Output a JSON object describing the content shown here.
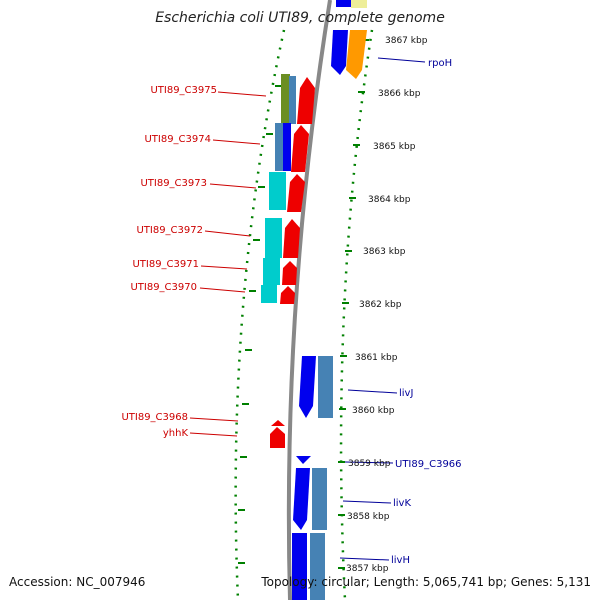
{
  "title": "Escherichia coli UTI89, complete genome",
  "footer": {
    "accession": "Accession: NC_007946",
    "stats": "Topology: circular; Length: 5,065,741 bp; Genes: 5,131"
  },
  "kbp_labels": [
    "3867 kbp",
    "3866 kbp",
    "3865 kbp",
    "3864 kbp",
    "3863 kbp",
    "3862 kbp",
    "3861 kbp",
    "3860 kbp",
    "3859 kbp",
    "3858 kbp",
    "3857 kbp"
  ],
  "left_labels": [
    "UTI89_C3975",
    "UTI89_C3974",
    "UTI89_C3973",
    "UTI89_C3972",
    "UTI89_C3971",
    "UTI89_C3970",
    "UTI89_C3968",
    "yhhK"
  ],
  "right_labels": [
    "rpoH",
    "livJ",
    "UTI89_C3966",
    "livK",
    "livH"
  ],
  "colors": {
    "backbone": "#888888",
    "red_gene": "#ee0000",
    "blue_gene": "#0000ee",
    "steel_gene": "#4682b4",
    "cyan_gene": "#00cccc",
    "orange_gene": "#ff9900",
    "olive_gene": "#6b8e23",
    "yellow_gene": "#eeee99",
    "dots": "#008000",
    "left_label": "#cc0000",
    "right_label": "#000099"
  }
}
